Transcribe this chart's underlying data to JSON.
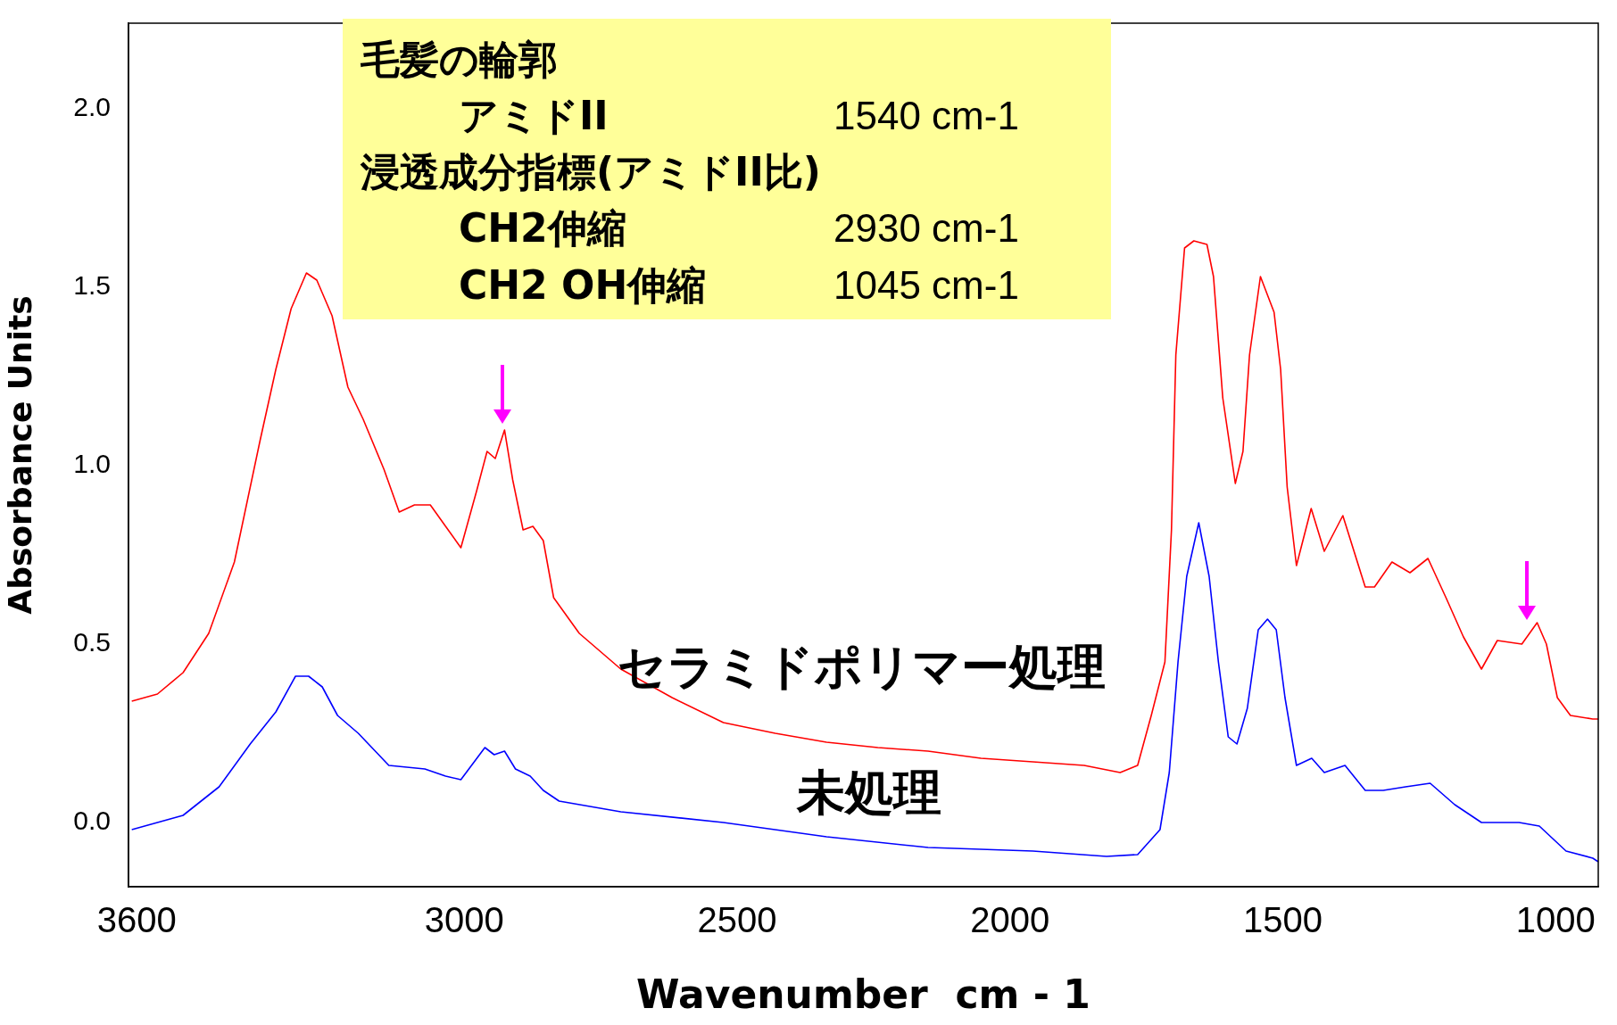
{
  "chart_data": {
    "type": "line",
    "xlabel": "Wavenumber  cm - 1",
    "ylabel": "Absorbance Units",
    "xlim": [
      3615,
      922
    ],
    "ylim": [
      -0.18,
      2.24
    ],
    "xticks": [
      3600,
      3000,
      2500,
      2000,
      1500,
      1000
    ],
    "yticks": [
      {
        "value": 0,
        "label": "0.0"
      },
      {
        "value": 0.5,
        "label": "0.5"
      },
      {
        "value": 1,
        "label": "1.0"
      },
      {
        "value": 1.5,
        "label": "1.5"
      },
      {
        "value": 2,
        "label": "2.0"
      }
    ],
    "grid": false,
    "legend": false,
    "marker": "none",
    "line_style": "solid",
    "annotations": [
      "毛髪の輪郭",
      "アミドII",
      "1540 cm-1",
      "浸透成分指標(アミドII比)",
      "CH2伸縮",
      "2930 cm-1",
      "CH2  OH伸縮",
      "1045   cm-1"
    ],
    "series": [
      {
        "name": "セラミドポリマー処理",
        "color": "#ff0000",
        "x": [
          3609,
          3562,
          3515,
          3468,
          3421,
          3374,
          3345,
          3317,
          3289,
          3270,
          3242,
          3213,
          3185,
          3147,
          3119,
          3091,
          3062,
          3034,
          3006,
          2977,
          2958,
          2943,
          2926,
          2911,
          2892,
          2874,
          2855,
          2836,
          2789,
          2713,
          2619,
          2525,
          2430,
          2336,
          2242,
          2150,
          2053,
          1958,
          1864,
          1798,
          1766,
          1741,
          1716,
          1704,
          1696,
          1680,
          1663,
          1639,
          1627,
          1610,
          1587,
          1573,
          1561,
          1541,
          1516,
          1504,
          1492,
          1475,
          1448,
          1424,
          1390,
          1349,
          1332,
          1300,
          1267,
          1234,
          1201,
          1169,
          1136,
          1107,
          1062,
          1034,
          1017,
          997,
          973,
          932,
          922
        ],
        "values": [
          0.34,
          0.36,
          0.42,
          0.53,
          0.73,
          1.07,
          1.27,
          1.44,
          1.54,
          1.52,
          1.42,
          1.22,
          1.13,
          0.99,
          0.87,
          0.89,
          0.89,
          0.83,
          0.77,
          0.93,
          1.04,
          1.02,
          1.1,
          0.96,
          0.82,
          0.83,
          0.79,
          0.63,
          0.53,
          0.43,
          0.35,
          0.28,
          0.25,
          0.225,
          0.21,
          0.2,
          0.18,
          0.17,
          0.16,
          0.14,
          0.16,
          0.3,
          0.45,
          0.82,
          1.31,
          1.61,
          1.63,
          1.62,
          1.53,
          1.19,
          0.95,
          1.04,
          1.31,
          1.53,
          1.43,
          1.27,
          0.94,
          0.72,
          0.88,
          0.76,
          0.86,
          0.66,
          0.66,
          0.73,
          0.7,
          0.74,
          0.63,
          0.52,
          0.43,
          0.51,
          0.5,
          0.56,
          0.5,
          0.35,
          0.3,
          0.29,
          0.29
        ]
      },
      {
        "name": "未処理",
        "color": "#0000ff",
        "x": [
          3609,
          3515,
          3449,
          3392,
          3345,
          3309,
          3285,
          3260,
          3232,
          3194,
          3138,
          3072,
          3034,
          3006,
          2962,
          2945,
          2926,
          2906,
          2879,
          2855,
          2826,
          2713,
          2525,
          2336,
          2150,
          1958,
          1823,
          1766,
          1725,
          1708,
          1692,
          1676,
          1654,
          1635,
          1618,
          1600,
          1584,
          1565,
          1545,
          1528,
          1512,
          1496,
          1475,
          1447,
          1424,
          1386,
          1349,
          1316,
          1275,
          1230,
          1185,
          1136,
          1067,
          1030,
          981,
          932,
          922
        ],
        "values": [
          -0.02,
          0.02,
          0.1,
          0.22,
          0.31,
          0.41,
          0.41,
          0.38,
          0.3,
          0.25,
          0.16,
          0.15,
          0.13,
          0.12,
          0.21,
          0.19,
          0.2,
          0.15,
          0.13,
          0.09,
          0.06,
          0.03,
          0.0,
          -0.04,
          -0.07,
          -0.08,
          -0.095,
          -0.09,
          -0.02,
          0.14,
          0.45,
          0.69,
          0.84,
          0.69,
          0.45,
          0.24,
          0.22,
          0.32,
          0.54,
          0.57,
          0.54,
          0.35,
          0.16,
          0.18,
          0.14,
          0.16,
          0.09,
          0.09,
          0.1,
          0.11,
          0.05,
          0.0,
          0.0,
          -0.01,
          -0.08,
          -0.1,
          -0.11
        ]
      }
    ]
  }
}
